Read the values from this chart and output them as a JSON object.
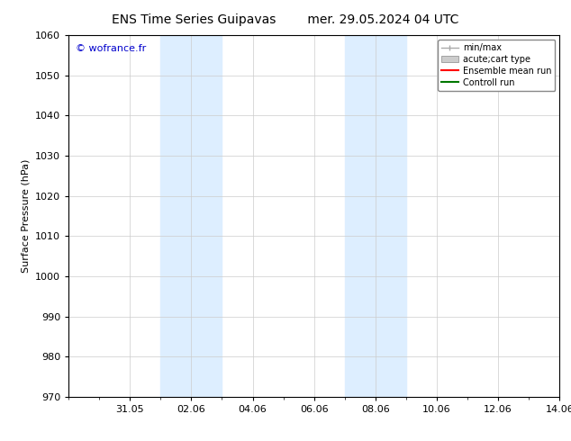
{
  "title_left": "ENS Time Series Guipavas",
  "title_right": "mer. 29.05.2024 04 UTC",
  "ylabel": "Surface Pressure (hPa)",
  "ylim": [
    970,
    1060
  ],
  "yticks": [
    970,
    980,
    990,
    1000,
    1010,
    1020,
    1030,
    1040,
    1050,
    1060
  ],
  "xtick_labels": [
    "31.05",
    "02.06",
    "04.06",
    "06.06",
    "08.06",
    "10.06",
    "12.06",
    "14.06"
  ],
  "xtick_positions": [
    2,
    4,
    6,
    8,
    10,
    12,
    14,
    16
  ],
  "xlim": [
    0,
    16
  ],
  "shaded_bands": [
    {
      "x_start": 3,
      "x_end": 5
    },
    {
      "x_start": 9,
      "x_end": 11
    }
  ],
  "shaded_color": "#ddeeff",
  "background_color": "#ffffff",
  "watermark_text": "© wofrance.fr",
  "watermark_color": "#0000cc",
  "grid_color": "#cccccc",
  "title_fontsize": 10,
  "axis_fontsize": 8,
  "tick_fontsize": 8,
  "legend_fontsize": 7,
  "minmax_color": "#aaaaaa",
  "cart_color": "#cccccc",
  "ensemble_color": "#ff0000",
  "control_color": "#007700"
}
